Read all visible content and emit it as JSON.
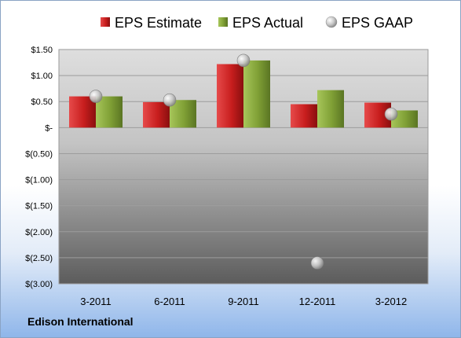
{
  "company": "Edison International",
  "chart_data": {
    "type": "bar",
    "categories": [
      "3-2011",
      "6-2011",
      "9-2011",
      "12-2011",
      "3-2012"
    ],
    "series": [
      {
        "name": "EPS Estimate",
        "kind": "bar",
        "color": "#d42a2a",
        "values": [
          0.6,
          0.49,
          1.22,
          0.45,
          0.48
        ]
      },
      {
        "name": "EPS Actual",
        "kind": "bar",
        "color": "#86a83c",
        "values": [
          0.6,
          0.53,
          1.29,
          0.72,
          0.33
        ]
      },
      {
        "name": "EPS GAAP",
        "kind": "marker",
        "color": "#b8b8b8",
        "values": [
          0.6,
          0.53,
          1.29,
          -2.6,
          0.26
        ]
      }
    ],
    "ylim": [
      -3.0,
      1.5
    ],
    "yticks": [
      1.5,
      1.0,
      0.5,
      0,
      -0.5,
      -1.0,
      -1.5,
      -2.0,
      -2.5,
      -3.0
    ],
    "ytick_labels": [
      "$1.50",
      "$1.00",
      "$0.50",
      "$-",
      "$(0.50)",
      "$(1.00)",
      "$(1.50)",
      "$(2.00)",
      "$(2.50)",
      "$(3.00)"
    ],
    "grid": true,
    "legend": "top"
  }
}
